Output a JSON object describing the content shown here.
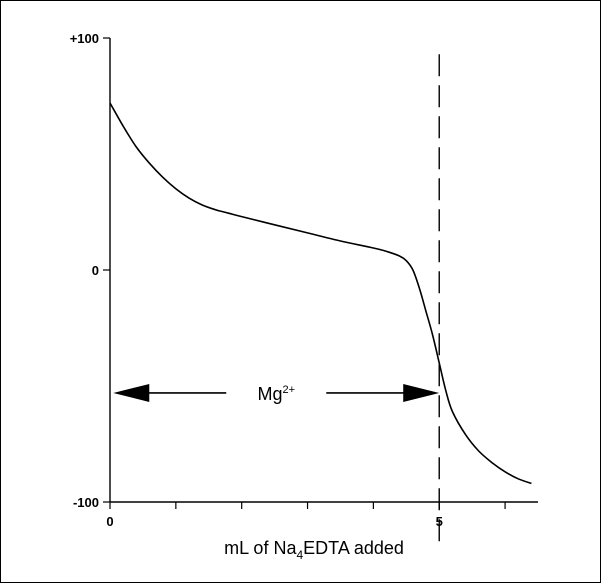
{
  "chart_data": {
    "type": "line",
    "title": "",
    "xlabel": {
      "prefix": "mL of Na",
      "subscript": "4",
      "suffix": "EDTA added"
    },
    "ylabel": "",
    "xlim": [
      0,
      6.5
    ],
    "ylim": [
      -100,
      100
    ],
    "x_ticks": [
      0,
      1,
      2,
      3,
      4,
      5,
      6
    ],
    "x_tick_labels": [
      {
        "value": 0,
        "label": "0"
      },
      {
        "value": 5,
        "label": "5"
      }
    ],
    "y_tick_labels": [
      {
        "value": 100,
        "label": "+100"
      },
      {
        "value": 0,
        "label": "0"
      },
      {
        "value": -100,
        "label": "-100"
      }
    ],
    "series": [
      {
        "color": "#000000",
        "points": [
          [
            0.0,
            72
          ],
          [
            0.2,
            62
          ],
          [
            0.4,
            53
          ],
          [
            0.6,
            46
          ],
          [
            0.8,
            40
          ],
          [
            1.0,
            35
          ],
          [
            1.2,
            31
          ],
          [
            1.4,
            28
          ],
          [
            1.6,
            26
          ],
          [
            1.8,
            24.5
          ],
          [
            2.0,
            23
          ],
          [
            2.5,
            19.5
          ],
          [
            3.0,
            16
          ],
          [
            3.5,
            12.5
          ],
          [
            4.0,
            9.5
          ],
          [
            4.2,
            8
          ],
          [
            4.4,
            6
          ],
          [
            4.5,
            4
          ],
          [
            4.6,
            0
          ],
          [
            4.7,
            -8
          ],
          [
            4.8,
            -18
          ],
          [
            4.9,
            -28
          ],
          [
            5.0,
            -40
          ],
          [
            5.1,
            -52
          ],
          [
            5.2,
            -61
          ],
          [
            5.4,
            -71
          ],
          [
            5.6,
            -78
          ],
          [
            5.8,
            -83
          ],
          [
            6.0,
            -87
          ],
          [
            6.2,
            -90
          ],
          [
            6.4,
            -92
          ]
        ]
      }
    ],
    "endpoint_line": {
      "x": 5.0,
      "y_from": 93,
      "y_to": -117,
      "style": "dashed"
    },
    "annotation": {
      "label_base": "Mg",
      "label_sup": "2+",
      "x_from": 0.05,
      "x_to": 5.0,
      "y": -53,
      "arrows": "both"
    },
    "grid": false,
    "legend": "none"
  }
}
